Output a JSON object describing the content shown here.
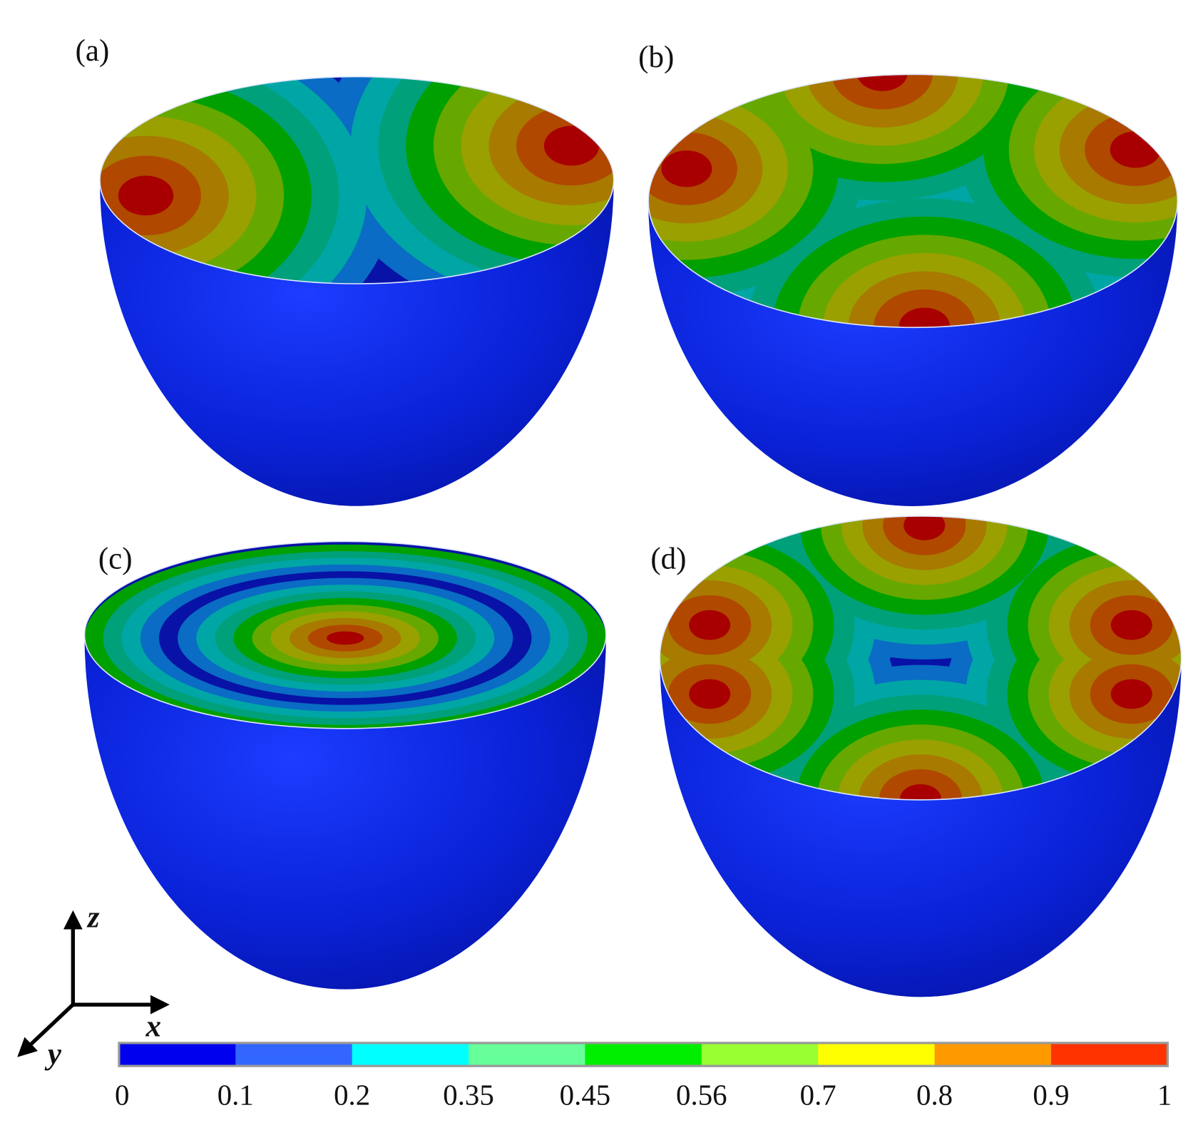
{
  "panels": [
    {
      "label": "(a)"
    },
    {
      "label": "(b)"
    },
    {
      "label": "(c)"
    },
    {
      "label": "(d)"
    }
  ],
  "axes": {
    "z": "z",
    "x": "x",
    "y": "y"
  },
  "colorbar": {
    "ticks": [
      "0",
      "0.1",
      "0.2",
      "0.35",
      "0.45",
      "0.56",
      "0.7",
      "0.8",
      "0.9",
      "1"
    ],
    "colors": [
      "#0000ee",
      "#3366ff",
      "#00ffff",
      "#66ff99",
      "#00ee00",
      "#99ff33",
      "#ffff00",
      "#ff9900",
      "#ff3300"
    ]
  }
}
